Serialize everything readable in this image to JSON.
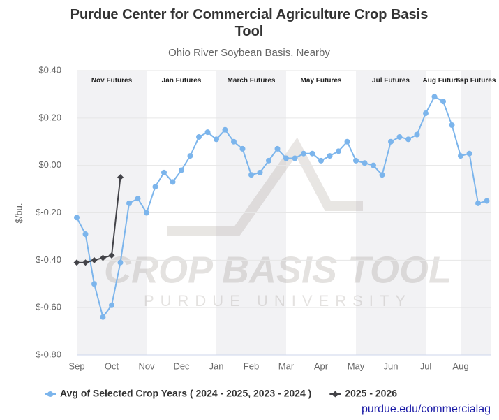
{
  "chart_data": {
    "type": "line",
    "title": "Purdue Center for Commercial Agriculture Crop Basis Tool",
    "subtitle": "Ohio River Soybean Basis, Nearby",
    "y_label": "$/bu.",
    "categories": [
      "Sep",
      null,
      null,
      null,
      "Oct",
      null,
      null,
      null,
      "Nov",
      null,
      null,
      null,
      "Dec",
      null,
      null,
      null,
      "Jan",
      null,
      null,
      null,
      "Feb",
      null,
      null,
      null,
      "Mar",
      null,
      null,
      null,
      "Apr",
      null,
      null,
      null,
      "May",
      null,
      null,
      null,
      "Jun",
      null,
      null,
      null,
      "Jul",
      null,
      null,
      null,
      "Aug",
      null,
      null,
      null
    ],
    "series": [
      {
        "name": "Avg of Selected Crop Years ( 2024 - 2025, 2023 - 2024 )",
        "color": "#7cb5ec",
        "marker": "circle",
        "values": [
          -0.22,
          -0.29,
          -0.5,
          -0.64,
          -0.59,
          -0.41,
          -0.16,
          -0.14,
          -0.2,
          -0.09,
          -0.03,
          -0.07,
          -0.02,
          0.04,
          0.12,
          0.14,
          0.11,
          0.15,
          0.1,
          0.07,
          -0.04,
          -0.03,
          0.02,
          0.07,
          0.03,
          0.03,
          0.05,
          0.05,
          0.02,
          0.04,
          0.06,
          0.1,
          0.02,
          0.01,
          0.0,
          -0.04,
          0.1,
          0.12,
          0.11,
          0.13,
          0.22,
          0.29,
          0.27,
          0.17,
          0.04,
          0.05,
          -0.16,
          -0.15
        ]
      },
      {
        "name": "2025 - 2026",
        "color": "#434348",
        "marker": "diamond",
        "values": [
          -0.41,
          -0.41,
          -0.4,
          -0.39,
          -0.38,
          -0.05,
          null,
          null,
          null,
          null,
          null,
          null,
          null,
          null,
          null,
          null,
          null,
          null,
          null,
          null,
          null,
          null,
          null,
          null,
          null,
          null,
          null,
          null,
          null,
          null,
          null,
          null,
          null,
          null,
          null,
          null,
          null,
          null,
          null,
          null,
          null,
          null,
          null,
          null,
          null,
          null,
          null,
          null
        ]
      }
    ],
    "bands": [
      {
        "label": "Nov Futures",
        "from": 0,
        "to": 8,
        "shaded": true
      },
      {
        "label": "Jan Futures",
        "from": 8,
        "to": 16,
        "shaded": false
      },
      {
        "label": "March Futures",
        "from": 16,
        "to": 24,
        "shaded": true
      },
      {
        "label": "May Futures",
        "from": 24,
        "to": 32,
        "shaded": false
      },
      {
        "label": "Jul Futures",
        "from": 32,
        "to": 40,
        "shaded": true
      },
      {
        "label": "Aug Futures",
        "from": 40,
        "to": 44,
        "shaded": false
      },
      {
        "label": "Sep Futures",
        "from": 44,
        "to": 48,
        "shaded": true
      }
    ],
    "ylim": [
      -0.8,
      0.4
    ],
    "yticks": [
      {
        "value": -0.8,
        "label": "$-0.80"
      },
      {
        "value": -0.6,
        "label": "$-0.60"
      },
      {
        "value": -0.4,
        "label": "$-0.40"
      },
      {
        "value": -0.2,
        "label": "$-0.20"
      },
      {
        "value": 0,
        "label": "$0.00"
      },
      {
        "value": 0.2,
        "label": "$0.20"
      },
      {
        "value": 0.4,
        "label": "$0.40"
      }
    ],
    "grid": true,
    "watermark": [
      "CROP BASIS TOOL",
      "PURDUE UNIVERSITY"
    ],
    "credit": "purdue.edu/commercialag"
  }
}
